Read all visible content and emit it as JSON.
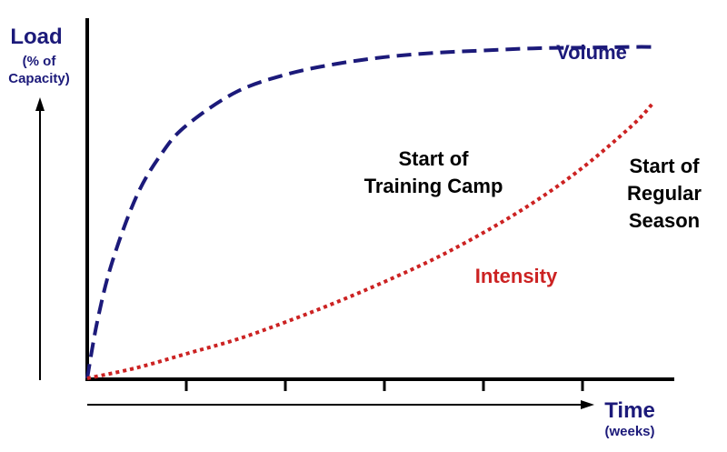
{
  "chart_data": {
    "type": "line",
    "title": "",
    "ylabel": "Load",
    "ylabel_sub": "(% of Capacity)",
    "ylabel_sub_lines": [
      "(% of",
      "Capacity)"
    ],
    "xlabel": "Time",
    "xlabel_sub": "(weeks)",
    "xlim": [
      0,
      6
    ],
    "ylim": [
      0,
      100
    ],
    "x_ticks": [
      1,
      2,
      3,
      4,
      5
    ],
    "grid": false,
    "legend": "none",
    "series": [
      {
        "name": "Volume",
        "style": "dashed",
        "color": "#1c1a7a",
        "x": [
          0,
          0.1,
          0.25,
          0.5,
          0.75,
          1.0,
          1.5,
          2.0,
          2.5,
          3.0,
          3.5,
          4.0,
          4.5,
          5.0,
          5.5,
          5.7
        ],
        "y": [
          0,
          16,
          33,
          52,
          64,
          72,
          81.5,
          86.5,
          89.5,
          91.5,
          92.7,
          93.4,
          94.0,
          94.2,
          94.4,
          94.4
        ]
      },
      {
        "name": "Intensity",
        "style": "dotted",
        "color": "#cc2222",
        "x": [
          0,
          0.5,
          1.0,
          1.5,
          2.0,
          2.5,
          3.0,
          3.5,
          4.0,
          4.5,
          5.0,
          5.5,
          5.7
        ],
        "y": [
          0,
          3,
          7,
          11,
          16,
          21.5,
          27.5,
          34,
          41.5,
          50,
          60,
          72,
          78
        ]
      }
    ],
    "annotations": [
      {
        "id": "training-camp",
        "lines": [
          "Start of",
          "Training Camp"
        ]
      },
      {
        "id": "regular-season",
        "lines": [
          "Start of",
          "Regular",
          "Season"
        ]
      }
    ]
  },
  "colors": {
    "axis": "#000000",
    "label_blue": "#1c1a7a",
    "label_red": "#cc2222",
    "annotation": "#000000"
  }
}
